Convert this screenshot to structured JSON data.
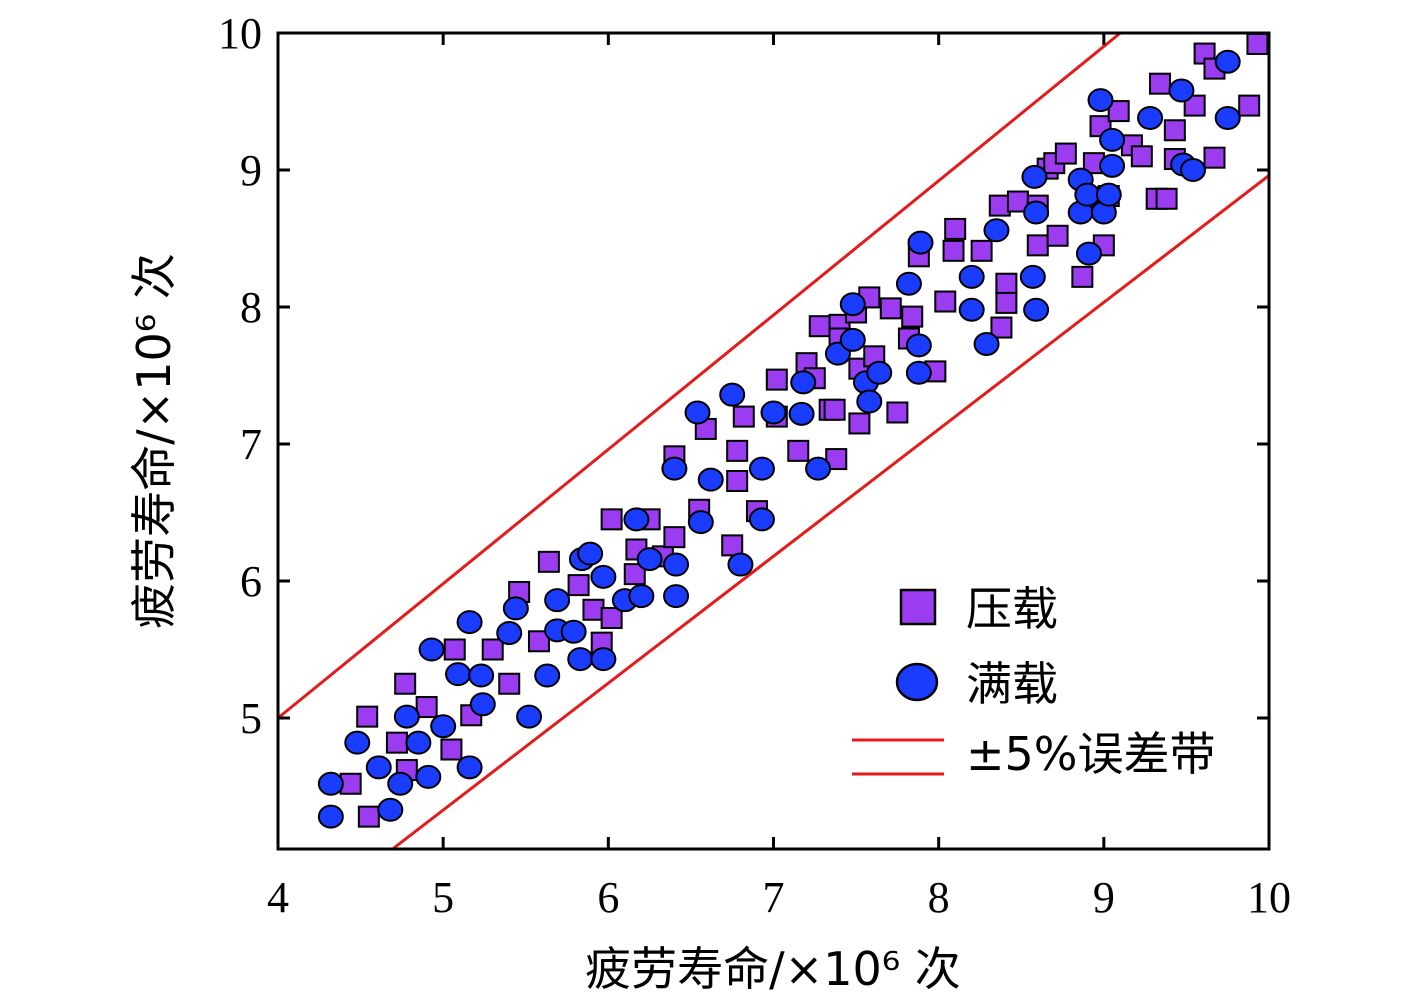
{
  "chart_data": {
    "type": "scatter",
    "title": "",
    "xlabel": "疲劳寿命/×10⁶ 次",
    "ylabel": "疲劳寿命/×10⁶ 次",
    "x_ticks": [
      4,
      5,
      6,
      7,
      8,
      9,
      10
    ],
    "y_ticks": [
      5,
      6,
      7,
      8,
      9,
      10
    ],
    "x_tick_labels": [
      "4",
      "5",
      "6",
      "7",
      "8",
      "9",
      "10"
    ],
    "y_tick_labels": [
      "5",
      "6",
      "7",
      "8",
      "9",
      "10"
    ],
    "series": [
      {
        "name": "压载",
        "marker": "square",
        "color": "#9b3cf0",
        "points": [
          [
            4.44,
            4.52
          ],
          [
            4.55,
            4.28
          ],
          [
            4.54,
            5.01
          ],
          [
            4.72,
            4.82
          ],
          [
            4.78,
            4.62
          ],
          [
            4.77,
            5.25
          ],
          [
            4.9,
            5.08
          ],
          [
            5.05,
            4.77
          ],
          [
            5.07,
            5.5
          ],
          [
            5.17,
            5.02
          ],
          [
            5.3,
            5.5
          ],
          [
            5.4,
            5.25
          ],
          [
            5.46,
            5.92
          ],
          [
            5.58,
            5.56
          ],
          [
            5.64,
            6.14
          ],
          [
            5.82,
            5.97
          ],
          [
            5.91,
            5.79
          ],
          [
            5.96,
            5.55
          ],
          [
            6.02,
            5.73
          ],
          [
            6.02,
            6.45
          ],
          [
            6.16,
            6.05
          ],
          [
            6.17,
            6.23
          ],
          [
            6.25,
            6.45
          ],
          [
            6.33,
            6.18
          ],
          [
            6.4,
            6.32
          ],
          [
            6.4,
            6.91
          ],
          [
            6.55,
            6.52
          ],
          [
            6.59,
            7.11
          ],
          [
            6.75,
            6.26
          ],
          [
            6.78,
            6.73
          ],
          [
            6.78,
            6.95
          ],
          [
            6.82,
            7.2
          ],
          [
            6.9,
            6.51
          ],
          [
            7.02,
            7.47
          ],
          [
            7.02,
            7.2
          ],
          [
            7.15,
            6.95
          ],
          [
            7.2,
            7.59
          ],
          [
            7.25,
            7.48
          ],
          [
            7.28,
            7.86
          ],
          [
            7.34,
            7.25
          ],
          [
            7.37,
            7.25
          ],
          [
            7.38,
            6.89
          ],
          [
            7.4,
            7.87
          ],
          [
            7.4,
            7.77
          ],
          [
            7.5,
            7.96
          ],
          [
            7.52,
            7.15
          ],
          [
            7.52,
            7.55
          ],
          [
            7.58,
            8.07
          ],
          [
            7.61,
            7.64
          ],
          [
            7.71,
            7.99
          ],
          [
            7.75,
            7.23
          ],
          [
            7.82,
            7.77
          ],
          [
            7.84,
            7.93
          ],
          [
            7.88,
            8.37
          ],
          [
            7.98,
            7.53
          ],
          [
            8.04,
            8.04
          ],
          [
            8.09,
            8.41
          ],
          [
            8.1,
            8.57
          ],
          [
            8.26,
            8.41
          ],
          [
            8.37,
            8.74
          ],
          [
            8.38,
            7.85
          ],
          [
            8.41,
            8.17
          ],
          [
            8.41,
            8.03
          ],
          [
            8.48,
            8.77
          ],
          [
            8.6,
            8.45
          ],
          [
            8.6,
            8.74
          ],
          [
            8.66,
            9.01
          ],
          [
            8.7,
            9.05
          ],
          [
            8.72,
            8.52
          ],
          [
            8.77,
            9.12
          ],
          [
            8.87,
            8.22
          ],
          [
            8.93,
            8.8
          ],
          [
            8.94,
            9.05
          ],
          [
            8.98,
            9.32
          ],
          [
            9.0,
            8.45
          ],
          [
            9.03,
            8.81
          ],
          [
            9.09,
            9.43
          ],
          [
            9.17,
            9.18
          ],
          [
            9.23,
            9.1
          ],
          [
            9.32,
            8.79
          ],
          [
            9.34,
            9.63
          ],
          [
            9.38,
            8.79
          ],
          [
            9.43,
            9.29
          ],
          [
            9.43,
            9.08
          ],
          [
            9.55,
            9.47
          ],
          [
            9.61,
            9.85
          ],
          [
            9.67,
            9.74
          ],
          [
            9.67,
            9.09
          ],
          [
            9.88,
            9.47
          ],
          [
            9.93,
            9.92
          ]
        ]
      },
      {
        "name": "满载",
        "marker": "circle",
        "color": "#1a3cff",
        "points": [
          [
            4.32,
            4.52
          ],
          [
            4.32,
            4.28
          ],
          [
            4.48,
            4.82
          ],
          [
            4.61,
            4.64
          ],
          [
            4.68,
            4.33
          ],
          [
            4.74,
            4.52
          ],
          [
            4.78,
            5.01
          ],
          [
            4.85,
            4.82
          ],
          [
            4.91,
            4.57
          ],
          [
            4.93,
            5.5
          ],
          [
            5.0,
            4.94
          ],
          [
            5.09,
            5.32
          ],
          [
            5.16,
            5.7
          ],
          [
            5.16,
            4.64
          ],
          [
            5.23,
            5.31
          ],
          [
            5.24,
            5.1
          ],
          [
            5.4,
            5.62
          ],
          [
            5.44,
            5.8
          ],
          [
            5.52,
            5.01
          ],
          [
            5.63,
            5.31
          ],
          [
            5.69,
            5.64
          ],
          [
            5.69,
            5.86
          ],
          [
            5.79,
            5.63
          ],
          [
            5.83,
            5.43
          ],
          [
            5.84,
            6.16
          ],
          [
            5.89,
            6.2
          ],
          [
            5.97,
            6.03
          ],
          [
            5.97,
            5.43
          ],
          [
            6.1,
            5.86
          ],
          [
            6.17,
            6.45
          ],
          [
            6.2,
            5.89
          ],
          [
            6.25,
            6.16
          ],
          [
            6.4,
            6.82
          ],
          [
            6.41,
            5.89
          ],
          [
            6.41,
            6.12
          ],
          [
            6.54,
            7.23
          ],
          [
            6.56,
            6.43
          ],
          [
            6.62,
            6.74
          ],
          [
            6.75,
            7.36
          ],
          [
            6.8,
            6.12
          ],
          [
            6.93,
            6.82
          ],
          [
            6.93,
            6.45
          ],
          [
            7.0,
            7.23
          ],
          [
            7.17,
            7.22
          ],
          [
            7.18,
            7.45
          ],
          [
            7.27,
            6.82
          ],
          [
            7.39,
            7.66
          ],
          [
            7.48,
            8.02
          ],
          [
            7.48,
            7.76
          ],
          [
            7.56,
            7.45
          ],
          [
            7.58,
            7.31
          ],
          [
            7.64,
            7.52
          ],
          [
            7.82,
            8.17
          ],
          [
            7.88,
            7.72
          ],
          [
            7.88,
            7.52
          ],
          [
            7.89,
            8.47
          ],
          [
            8.2,
            7.98
          ],
          [
            8.2,
            8.22
          ],
          [
            8.29,
            7.73
          ],
          [
            8.35,
            8.56
          ],
          [
            8.57,
            8.22
          ],
          [
            8.58,
            8.95
          ],
          [
            8.59,
            8.69
          ],
          [
            8.59,
            7.98
          ],
          [
            8.86,
            8.93
          ],
          [
            8.86,
            8.69
          ],
          [
            8.9,
            8.82
          ],
          [
            8.91,
            8.39
          ],
          [
            8.98,
            9.51
          ],
          [
            9.0,
            8.69
          ],
          [
            9.03,
            8.82
          ],
          [
            9.05,
            9.03
          ],
          [
            9.05,
            9.22
          ],
          [
            9.28,
            9.38
          ],
          [
            9.47,
            9.58
          ],
          [
            9.48,
            9.04
          ],
          [
            9.54,
            9.0
          ],
          [
            9.75,
            9.79
          ],
          [
            9.75,
            9.38
          ]
        ]
      }
    ],
    "error_band": {
      "name": "±5%误差带",
      "color": "#e51b1b",
      "lines": [
        {
          "x": [
            4.0,
            9.1
          ],
          "y": [
            5.0,
            10.0
          ]
        },
        {
          "x": [
            4.7,
            10.0
          ],
          "y": [
            4.05,
            8.96
          ]
        }
      ]
    },
    "legend": {
      "position": "bottom-right",
      "entries": [
        "压载",
        "满载",
        "±5%误差带"
      ]
    },
    "grid": false
  }
}
